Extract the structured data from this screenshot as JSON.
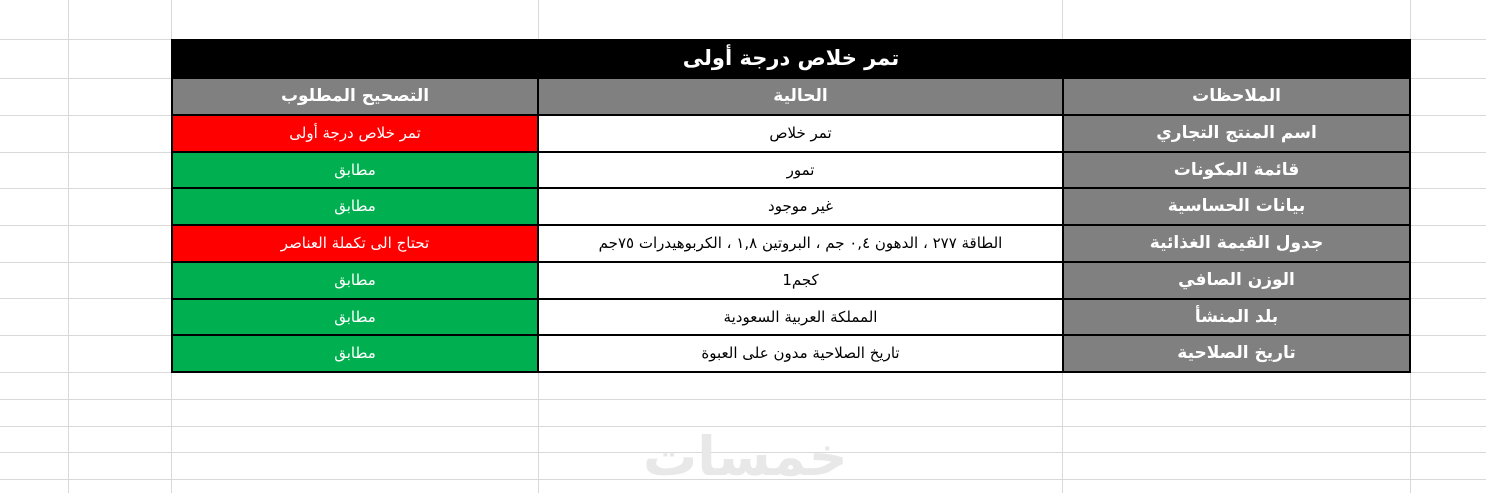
{
  "title": "تمر خلاص درجة أولى",
  "table": {
    "headers": {
      "notes": "الملاحظات",
      "current": "الحالية",
      "correction": "التصحيح المطلوب"
    },
    "rows": [
      {
        "label": "اسم المنتج التجاري",
        "current": "تمر خلاص",
        "correction": "تمر خلاص درجة أولى",
        "status": "red"
      },
      {
        "label": "قائمة المكونات",
        "current": "تمور",
        "correction": "مطابق",
        "status": "green"
      },
      {
        "label": "بيانات الحساسية",
        "current": "غير موجود",
        "correction": "مطابق",
        "status": "green"
      },
      {
        "label": "جدول القيمة الغذائية",
        "current": "الطاقة ٢٧٧ ، الدهون ٠,٤ جم ، البروتين ١,٨ ، الكربوهيدرات ٧٥جم",
        "correction": "تحتاج الى تكملة العناصر",
        "status": "red"
      },
      {
        "label": "الوزن الصافي",
        "current": "1كجم",
        "correction": "مطابق",
        "status": "green"
      },
      {
        "label": "بلد المنشأ",
        "current": "المملكة العربية السعودية",
        "correction": "مطابق",
        "status": "green"
      },
      {
        "label": "تاريخ الصلاحية",
        "current": "تاريخ الصلاحية مدون على العبوة",
        "correction": "مطابق",
        "status": "green"
      }
    ]
  },
  "watermark": "خمسات",
  "colors": {
    "title_bg": "#000000",
    "header_bg": "#808080",
    "match_green": "#00b050",
    "mismatch_red": "#ff0000",
    "gridline": "#d9d9d9",
    "watermark_gray": "#e8e8e8"
  }
}
